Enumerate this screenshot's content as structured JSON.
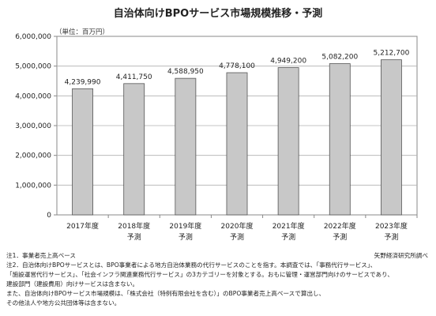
{
  "chart_data": {
    "type": "bar",
    "title": "自治体向けBPOサービス市場規模推移・予測",
    "unit_label": "（単位：百万円）",
    "categories": [
      "2017年度",
      "2018年度",
      "2019年度",
      "2020年度",
      "2021年度",
      "2022年度",
      "2023年度"
    ],
    "sublabels": [
      "",
      "予測",
      "予測",
      "予測",
      "予測",
      "予測",
      "予測"
    ],
    "values": [
      4239990,
      4411750,
      4588950,
      4778100,
      4949200,
      5082200,
      5212700
    ],
    "value_labels": [
      "4,239,990",
      "4,411,750",
      "4,588,950",
      "4,778,100",
      "4,949,200",
      "5,082,200",
      "5,212,700"
    ],
    "ylim": [
      0,
      6000000
    ],
    "yticks": [
      0,
      1000000,
      2000000,
      3000000,
      4000000,
      5000000,
      6000000
    ],
    "ytick_labels": [
      "0",
      "1,000,000",
      "2,000,000",
      "3,000,000",
      "4,000,000",
      "5,000,000",
      "6,000,000"
    ],
    "grid": true,
    "bar_color": "#c8c8c8",
    "bar_border": "#555555"
  },
  "notes": [
    "注1．事業者売上高ベース",
    "注2．自治体向けBPOサービスとは、BPO事業者による地方自治体業務の代行サービスのことを指す。本調査では、「事務代行サービス」、",
    "「施設運営代行サービス」、「社会インフラ関連業務代行サービス」の3カテゴリーを対象とする。おもに管理・運営部門向けのサービスであり、",
    "建設部門（建設費用）向けサービスは含まない。",
    "また、自治体向けBPOサービス市場規模は、「株式会社（特例有限会社を含む）」のBPO事業者売上高ベースで算出し、",
    "その他法人や地方公共団体等は含まない。"
  ],
  "source": "矢野経済研究所調べ"
}
